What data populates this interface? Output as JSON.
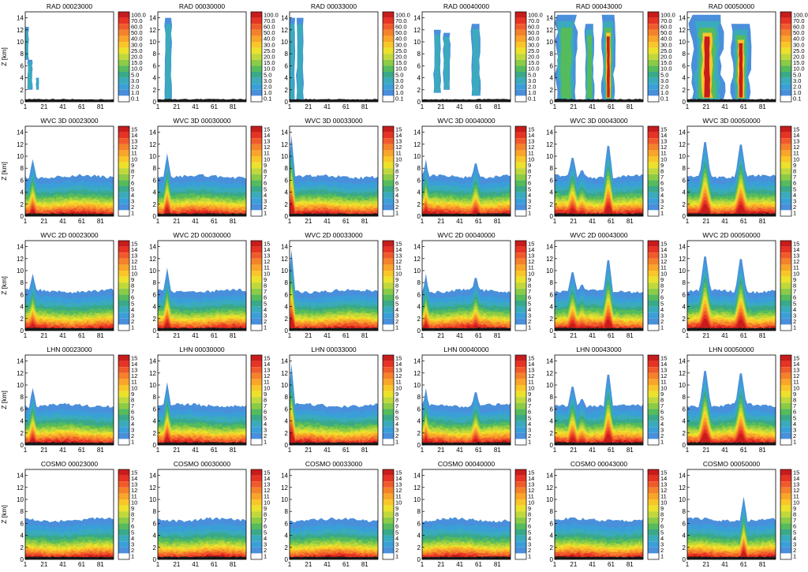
{
  "figure": {
    "ylabel": "Z [km]",
    "x_ticks": [
      "1",
      "21",
      "41",
      "61",
      "81"
    ],
    "y_ticks": [
      "0",
      "2",
      "4",
      "6",
      "8",
      "10",
      "12",
      "14"
    ],
    "times": [
      "00023000",
      "00030000",
      "00033000",
      "00040000",
      "00043000",
      "00050000"
    ]
  },
  "chart_data": [
    {
      "type": "heatmap",
      "row_label": "RAD",
      "titles": [
        "RAD 00023000",
        "RAD 00030000",
        "RAD 00033000",
        "RAD 00040000",
        "RAD 00043000",
        "RAD 00050000"
      ],
      "ylabel": "Z [km]",
      "xlim": [
        1,
        95
      ],
      "ylim": [
        0,
        15
      ],
      "x_ticks": [
        1,
        21,
        41,
        61,
        81
      ],
      "y_ticks": [
        0,
        2,
        4,
        6,
        8,
        10,
        12,
        14
      ],
      "colorbar_labels": [
        "100.0",
        "70.0",
        "60.0",
        "50.0",
        "40.0",
        "30.0",
        "25.0",
        "20.0",
        "15.0",
        "10.0",
        "5.0",
        "3.0",
        "2.0",
        "1.0",
        "0.1"
      ],
      "colorbar_colors": [
        "#c81c1c",
        "#e63324",
        "#f05a2a",
        "#f4822b",
        "#f8a52a",
        "#f9c62a",
        "#ece12b",
        "#c0d83a",
        "#8ccb46",
        "#55bb5c",
        "#3aa98a",
        "#3aabbc",
        "#3a9fd8",
        "#4a8fdb",
        "#ffffff"
      ]
    },
    {
      "type": "heatmap",
      "row_label": "WVC 3D",
      "titles": [
        "WVC 3D 00023000",
        "WVC 3D 00030000",
        "WVC 3D 00033000",
        "WVC 3D 00040000",
        "WVC 3D 00043000",
        "WVC 3D 00050000"
      ],
      "ylabel": "Z [km]",
      "xlim": [
        1,
        95
      ],
      "ylim": [
        0,
        15
      ],
      "x_ticks": [
        1,
        21,
        41,
        61,
        81
      ],
      "y_ticks": [
        0,
        2,
        4,
        6,
        8,
        10,
        12,
        14
      ],
      "colorbar_labels": [
        "15",
        "14",
        "13",
        "12",
        "11",
        "10",
        "9",
        "8",
        "7",
        "6",
        "5",
        "4",
        "3",
        "2",
        "1"
      ],
      "colorbar_colors": [
        "#c81c1c",
        "#e63324",
        "#f05a2a",
        "#f4822b",
        "#f8a52a",
        "#f9c62a",
        "#ece12b",
        "#c0d83a",
        "#8ccb46",
        "#55bb5c",
        "#3aa98a",
        "#3aabbc",
        "#3a9fd8",
        "#4a8fdb",
        "#ffffff"
      ]
    },
    {
      "type": "heatmap",
      "row_label": "WVC 2D",
      "titles": [
        "WVC 2D 00023000",
        "WVC 2D 00030000",
        "WVC 2D 00033000",
        "WVC 2D 00040000",
        "WVC 2D 00043000",
        "WVC 2D 00050000"
      ],
      "ylabel": "Z [km]",
      "xlim": [
        1,
        95
      ],
      "ylim": [
        0,
        15
      ],
      "x_ticks": [
        1,
        21,
        41,
        61,
        81
      ],
      "y_ticks": [
        0,
        2,
        4,
        6,
        8,
        10,
        12,
        14
      ],
      "colorbar_labels": [
        "15",
        "14",
        "13",
        "12",
        "11",
        "10",
        "9",
        "8",
        "7",
        "6",
        "5",
        "4",
        "3",
        "2",
        "1"
      ],
      "colorbar_colors": [
        "#c81c1c",
        "#e63324",
        "#f05a2a",
        "#f4822b",
        "#f8a52a",
        "#f9c62a",
        "#ece12b",
        "#c0d83a",
        "#8ccb46",
        "#55bb5c",
        "#3aa98a",
        "#3aabbc",
        "#3a9fd8",
        "#4a8fdb",
        "#ffffff"
      ]
    },
    {
      "type": "heatmap",
      "row_label": "LHN",
      "titles": [
        "LHN 00023000",
        "LHN 00030000",
        "LHN 00033000",
        "LHN 00040000",
        "LHN 00043000",
        "LHN 00050000"
      ],
      "ylabel": "Z [km]",
      "xlim": [
        1,
        95
      ],
      "ylim": [
        0,
        15
      ],
      "x_ticks": [
        1,
        21,
        41,
        61,
        81
      ],
      "y_ticks": [
        0,
        2,
        4,
        6,
        8,
        10,
        12,
        14
      ],
      "colorbar_labels": [
        "15",
        "14",
        "13",
        "12",
        "11",
        "10",
        "9",
        "8",
        "7",
        "6",
        "5",
        "4",
        "3",
        "2",
        "1"
      ],
      "colorbar_colors": [
        "#c81c1c",
        "#e63324",
        "#f05a2a",
        "#f4822b",
        "#f8a52a",
        "#f9c62a",
        "#ece12b",
        "#c0d83a",
        "#8ccb46",
        "#55bb5c",
        "#3aa98a",
        "#3aabbc",
        "#3a9fd8",
        "#4a8fdb",
        "#ffffff"
      ]
    },
    {
      "type": "heatmap",
      "row_label": "COSMO",
      "titles": [
        "COSMO 00023000",
        "COSMO 00030000",
        "COSMO 00033000",
        "COSMO 00040000",
        "COSMO 00043000",
        "COSMO 00050000"
      ],
      "ylabel": "Z [km]",
      "xlim": [
        1,
        95
      ],
      "ylim": [
        0,
        15
      ],
      "x_ticks": [
        1,
        21,
        41,
        61,
        81
      ],
      "y_ticks": [
        0,
        2,
        4,
        6,
        8,
        10,
        12,
        14
      ],
      "colorbar_labels": [
        "15",
        "14",
        "13",
        "12",
        "11",
        "10",
        "9",
        "8",
        "7",
        "6",
        "5",
        "4",
        "3",
        "2",
        "1"
      ],
      "colorbar_colors": [
        "#c81c1c",
        "#e63324",
        "#f05a2a",
        "#f4822b",
        "#f8a52a",
        "#f9c62a",
        "#ece12b",
        "#c0d83a",
        "#8ccb46",
        "#55bb5c",
        "#3aa98a",
        "#3aabbc",
        "#3a9fd8",
        "#4a8fdb",
        "#ffffff"
      ]
    }
  ]
}
